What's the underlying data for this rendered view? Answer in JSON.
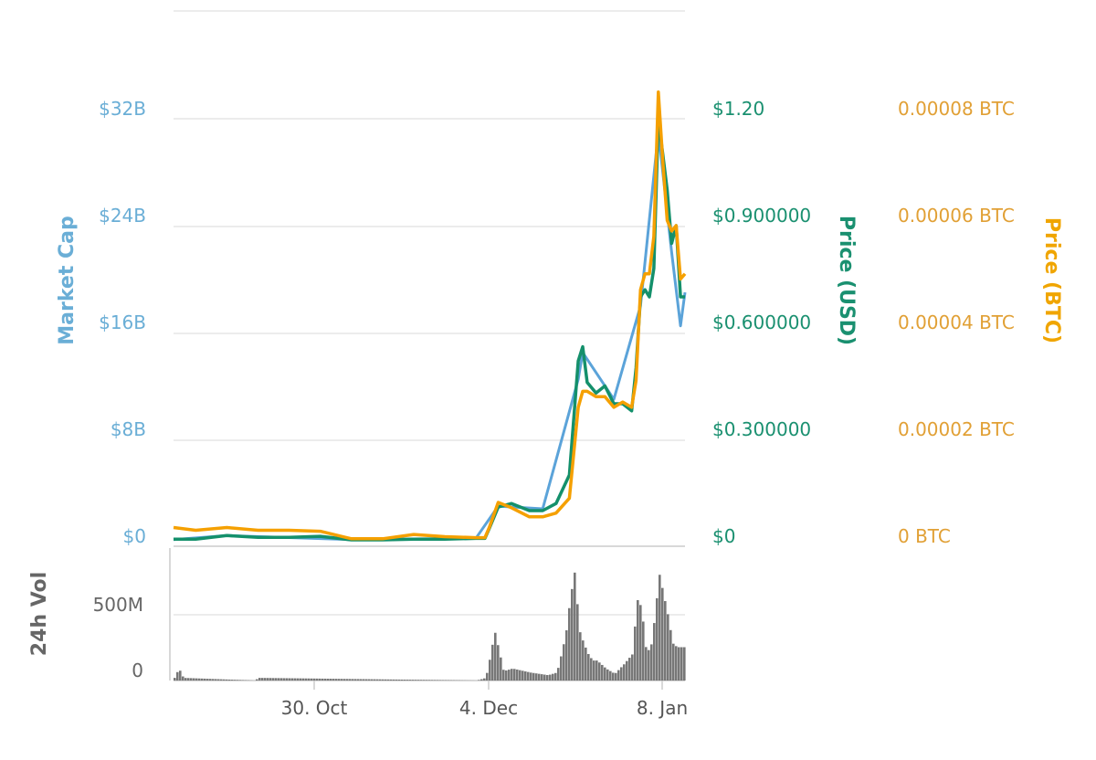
{
  "chart_data": {
    "type": "line",
    "axes": {
      "market_cap": {
        "title": "Market Cap",
        "ticks": [
          "$0",
          "$8B",
          "$16B",
          "$24B",
          "$32B"
        ],
        "range": [
          0,
          32
        ]
      },
      "price_usd": {
        "title": "Price (USD)",
        "ticks": [
          "$0",
          "$0.300000",
          "$0.600000",
          "$0.900000",
          "$1.20"
        ],
        "range": [
          0,
          1.2
        ]
      },
      "price_btc": {
        "title": "Price (BTC)",
        "ticks": [
          "0 BTC",
          "0.00002 BTC",
          "0.00004 BTC",
          "0.00006 BTC",
          "0.00008 BTC"
        ],
        "range": [
          0,
          8e-05
        ]
      },
      "volume": {
        "title": "24h Vol",
        "ticks": [
          "0",
          "500M"
        ],
        "range": [
          0,
          1000
        ]
      },
      "x": {
        "ticks": [
          "30. Oct",
          "4. Dec",
          "8. Jan"
        ]
      }
    },
    "colors": {
      "market_cap": "#5ba3d9",
      "price_usd": "#14906b",
      "price_btc": "#f5a000",
      "volume": "#777777",
      "grid": "#e6e6e6"
    },
    "series_usd": {
      "x": [
        "2017-09-20",
        "2017-09-25",
        "2017-10-02",
        "2017-10-09",
        "2017-10-16",
        "2017-10-23",
        "2017-10-30",
        "2017-11-06",
        "2017-11-13",
        "2017-11-20",
        "2017-11-27",
        "2017-11-29",
        "2017-11-30",
        "2017-12-02",
        "2017-12-05",
        "2017-12-09",
        "2017-12-12",
        "2017-12-15",
        "2017-12-18",
        "2017-12-20",
        "2017-12-21",
        "2017-12-22",
        "2017-12-24",
        "2017-12-26",
        "2017-12-28",
        "2017-12-30",
        "2018-01-01",
        "2018-01-02",
        "2018-01-03",
        "2018-01-04",
        "2018-01-05",
        "2018-01-06",
        "2018-01-07",
        "2018-01-08",
        "2018-01-09",
        "2018-01-10",
        "2018-01-11",
        "2018-01-12",
        "2018-01-13"
      ],
      "values": [
        0.02,
        0.02,
        0.03,
        0.025,
        0.025,
        0.028,
        0.018,
        0.018,
        0.02,
        0.02,
        0.022,
        0.022,
        0.05,
        0.11,
        0.12,
        0.1,
        0.1,
        0.12,
        0.2,
        0.52,
        0.56,
        0.46,
        0.43,
        0.45,
        0.4,
        0.4,
        0.38,
        0.5,
        0.7,
        0.72,
        0.7,
        0.78,
        1.2,
        1.1,
        1.0,
        0.85,
        0.9,
        0.7,
        0.7
      ]
    },
    "series_market_cap": {
      "x": [
        "2017-09-20",
        "2017-10-02",
        "2017-10-30",
        "2017-11-27",
        "2017-12-02",
        "2017-12-12",
        "2017-12-20",
        "2017-12-21",
        "2017-12-28",
        "2018-01-03",
        "2018-01-07",
        "2018-01-10",
        "2018-01-12",
        "2018-01-13"
      ],
      "values": [
        0.5,
        0.8,
        0.5,
        0.6,
        3.0,
        2.8,
        12.5,
        14.5,
        11.0,
        18.0,
        31.0,
        22.0,
        16.5,
        19.0
      ]
    },
    "series_btc": {
      "x": [
        "2017-09-20",
        "2017-09-25",
        "2017-10-02",
        "2017-10-09",
        "2017-10-16",
        "2017-10-23",
        "2017-10-30",
        "2017-11-06",
        "2017-11-13",
        "2017-11-20",
        "2017-11-27",
        "2017-11-29",
        "2017-11-30",
        "2017-12-02",
        "2017-12-05",
        "2017-12-09",
        "2017-12-12",
        "2017-12-15",
        "2017-12-18",
        "2017-12-20",
        "2017-12-21",
        "2017-12-22",
        "2017-12-24",
        "2017-12-26",
        "2017-12-28",
        "2017-12-30",
        "2018-01-01",
        "2018-01-02",
        "2018-01-03",
        "2018-01-04",
        "2018-01-05",
        "2018-01-06",
        "2018-01-07",
        "2018-01-08",
        "2018-01-09",
        "2018-01-10",
        "2018-01-11",
        "2018-01-12",
        "2018-01-13"
      ],
      "values": [
        3.5e-06,
        3e-06,
        3.5e-06,
        3e-06,
        3e-06,
        2.8e-06,
        1.4e-06,
        1.4e-06,
        2.2e-06,
        1.8e-06,
        1.6e-06,
        1.6e-06,
        3.5e-06,
        8.2e-06,
        7.2e-06,
        5.5e-06,
        5.5e-06,
        6.2e-06,
        9e-06,
        2.6e-05,
        2.9e-05,
        2.9e-05,
        2.8e-05,
        2.8e-05,
        2.6e-05,
        2.7e-05,
        2.6e-05,
        3.1e-05,
        4.8e-05,
        5.1e-05,
        5.1e-05,
        5.8e-05,
        8.5e-05,
        7.2e-05,
        6.1e-05,
        5.9e-05,
        6e-05,
        5e-05,
        5.1e-05
      ]
    },
    "series_volume": {
      "x": [
        "2017-09-20",
        "2017-09-21",
        "2017-09-22",
        "2017-10-08",
        "2017-10-09",
        "2017-11-27",
        "2017-11-29",
        "2017-11-30",
        "2017-12-01",
        "2017-12-02",
        "2017-12-03",
        "2017-12-05",
        "2017-12-09",
        "2017-12-13",
        "2017-12-15",
        "2017-12-16",
        "2017-12-17",
        "2017-12-18",
        "2017-12-19",
        "2017-12-20",
        "2017-12-21",
        "2017-12-22",
        "2017-12-23",
        "2017-12-24",
        "2017-12-26",
        "2017-12-28",
        "2017-12-30",
        "2018-01-01",
        "2018-01-02",
        "2018-01-03",
        "2018-01-04",
        "2018-01-05",
        "2018-01-06",
        "2018-01-07",
        "2018-01-08",
        "2018-01-09",
        "2018-01-10",
        "2018-01-11",
        "2018-01-12",
        "2018-01-13"
      ],
      "values": [
        20,
        90,
        20,
        0,
        20,
        0,
        20,
        180,
        370,
        220,
        70,
        90,
        60,
        40,
        60,
        200,
        350,
        620,
        820,
        380,
        280,
        200,
        150,
        150,
        90,
        50,
        120,
        200,
        610,
        550,
        240,
        220,
        480,
        800,
        640,
        480,
        280,
        250,
        250,
        250
      ]
    }
  }
}
